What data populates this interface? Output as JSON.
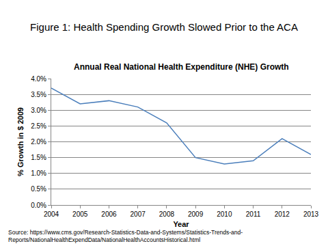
{
  "chart_data": {
    "type": "line",
    "title": "Figure 1: Health Spending Growth Slowed Prior to the ACA",
    "subtitle": "Annual Real National Health Expenditure (NHE) Growth",
    "xlabel": "Year",
    "ylabel": "% Growth in $ 2009",
    "categories": [
      "2004",
      "2005",
      "2006",
      "2007",
      "2008",
      "2009",
      "2010",
      "2011",
      "2012",
      "2013"
    ],
    "values": [
      3.7,
      3.2,
      3.3,
      3.1,
      2.6,
      1.5,
      1.3,
      1.4,
      2.1,
      1.6
    ],
    "color": "#4a7ebb",
    "ylim": [
      0,
      4
    ],
    "yticks": [
      {
        "value": 0,
        "label": "0.0%"
      },
      {
        "value": 0.5,
        "label": "0.5%"
      },
      {
        "value": 1,
        "label": "1.0%"
      },
      {
        "value": 1.5,
        "label": "1.5%"
      },
      {
        "value": 2,
        "label": "2.0%"
      },
      {
        "value": 2.5,
        "label": "2.5%"
      },
      {
        "value": 3,
        "label": "3.0%"
      },
      {
        "value": 3.5,
        "label": "3.5%"
      },
      {
        "value": 4,
        "label": "4.0%"
      }
    ],
    "grid": true,
    "annotations": [
      "Source: https://www.cms.gov/Research-Statistics-Data-and-Systems/Statistics-Trends-and-",
      "Reports/NationalHealthExpendData/NationalHealthAccountsHistorical.html"
    ]
  }
}
